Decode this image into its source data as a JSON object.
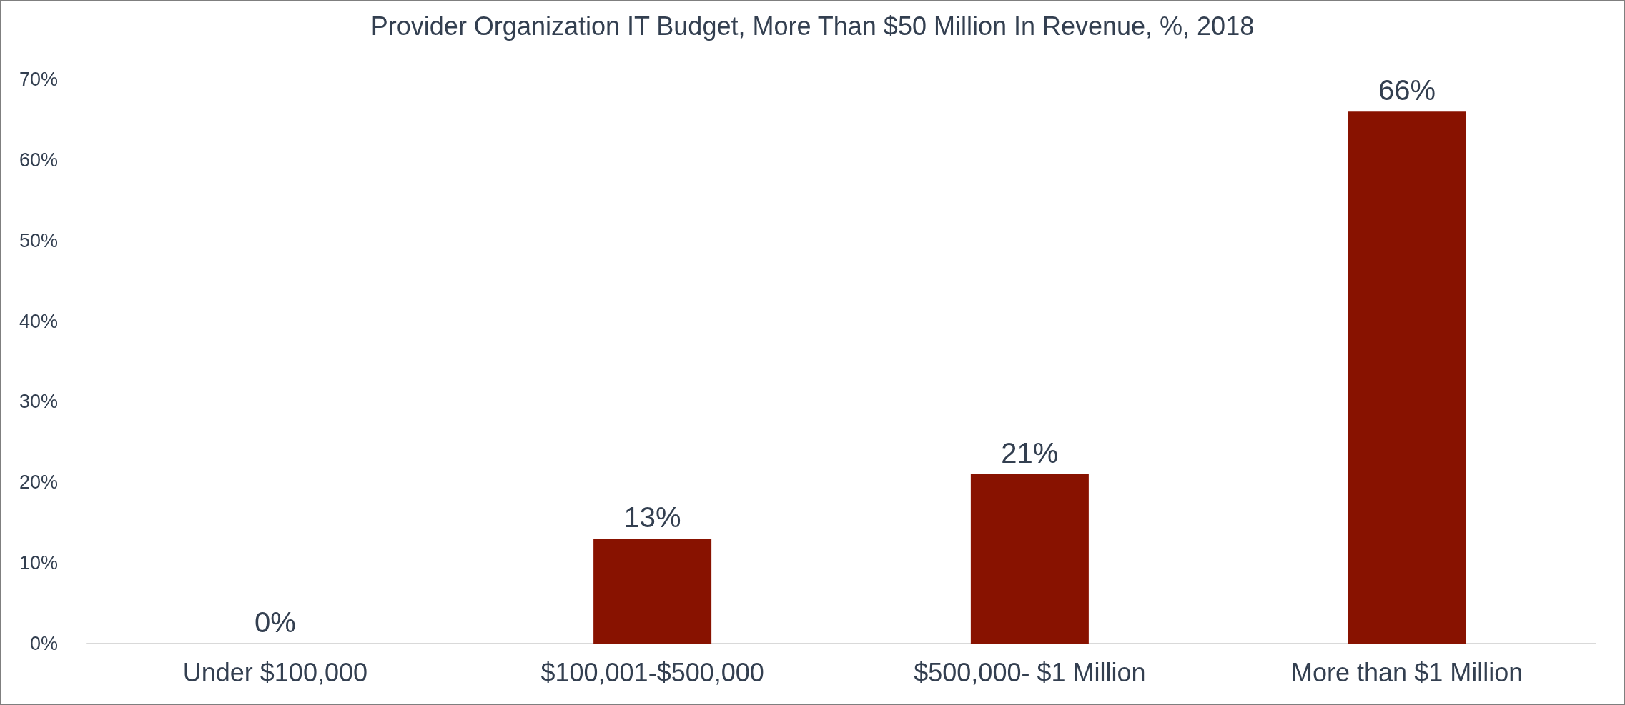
{
  "chart_data": {
    "type": "bar",
    "title": "Provider Organization IT Budget, More Than $50 Million In Revenue, %, 2018",
    "categories": [
      "Under $100,000",
      "$100,001-$500,000",
      "$500,000- $1 Million",
      "More than $1 Million"
    ],
    "values": [
      0,
      13,
      21,
      66
    ],
    "value_labels": [
      "0%",
      "13%",
      "21%",
      "66%"
    ],
    "color": "#881200",
    "ylim": [
      0,
      70
    ],
    "yticks": [
      {
        "value": 0,
        "label": "0%"
      },
      {
        "value": 10,
        "label": "10%"
      },
      {
        "value": 20,
        "label": "20%"
      },
      {
        "value": 30,
        "label": "30%"
      },
      {
        "value": 40,
        "label": "40%"
      },
      {
        "value": 50,
        "label": "50%"
      },
      {
        "value": 60,
        "label": "60%"
      },
      {
        "value": 70,
        "label": "70%"
      }
    ],
    "grid": false
  }
}
